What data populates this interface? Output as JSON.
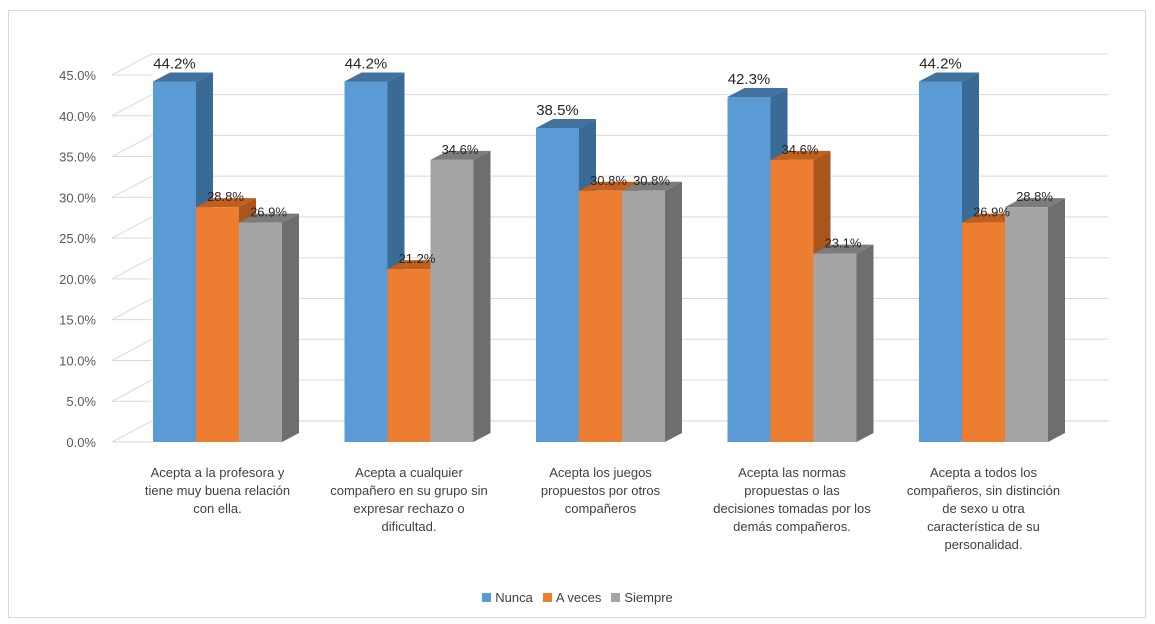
{
  "chart_data": {
    "type": "bar",
    "title": "",
    "xlabel": "",
    "ylabel": "",
    "ylim": [
      0,
      45
    ],
    "yticks": [
      "0.0%",
      "5.0%",
      "10.0%",
      "15.0%",
      "20.0%",
      "25.0%",
      "30.0%",
      "35.0%",
      "40.0%",
      "45.0%"
    ],
    "categories": [
      "Acepta a la profesora y\ntiene muy buena relación\ncon ella.",
      "Acepta a cualquier\ncompañero en su grupo sin\nexpresar rechazo o\ndificultad.",
      "Acepta los juegos\npropuestos por otros\ncompañeros",
      "Acepta las normas\npropuestas o las\ndecisiones tomadas por los\ndemás compañeros.",
      "Acepta a todos los\ncompañeros, sin distinción\nde sexo u otra\ncaracterística de su\npersonalidad."
    ],
    "series": [
      {
        "name": "Nunca",
        "values": [
          44.2,
          44.2,
          38.5,
          42.3,
          44.2
        ],
        "labels": [
          "44.2%",
          "44.2%",
          "38.5%",
          "42.3%",
          "44.2%"
        ],
        "color": "#5b9bd5",
        "side_color": "#3a6a96",
        "top_color": "#41719c"
      },
      {
        "name": "A veces",
        "values": [
          28.8,
          21.2,
          30.8,
          34.6,
          26.9
        ],
        "labels": [
          "28.8%",
          "21.2%",
          "30.8%",
          "34.6%",
          "26.9%"
        ],
        "color": "#ed7d31",
        "side_color": "#a9561e",
        "top_color": "#c0601f"
      },
      {
        "name": "Siempre",
        "values": [
          26.9,
          34.6,
          30.8,
          23.1,
          28.8
        ],
        "labels": [
          "26.9%",
          "34.6%",
          "30.8%",
          "23.1%",
          "28.8%"
        ],
        "color": "#a5a5a5",
        "side_color": "#6e6e6e",
        "top_color": "#7c7c7c"
      }
    ],
    "grid": true,
    "three_d": true,
    "legend_position": "bottom"
  }
}
